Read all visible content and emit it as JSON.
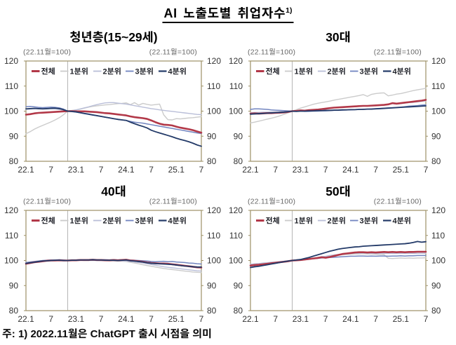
{
  "page": {
    "title": "AI 노출도별 취업자수",
    "title_sup": "1)",
    "footnote": "주: 1) 2022.11월은 ChatGPT 출시 시점을 의미"
  },
  "axis": {
    "ylim": [
      80,
      120
    ],
    "y_ticks": [
      120,
      110,
      100,
      90,
      80
    ],
    "x_ticks": [
      {
        "m": 0,
        "label": "22.1"
      },
      {
        "m": 6,
        "label": "7"
      },
      {
        "m": 12,
        "label": "23.1"
      },
      {
        "m": 18,
        "label": "7"
      },
      {
        "m": 24,
        "label": "24.1"
      },
      {
        "m": 30,
        "label": "7"
      },
      {
        "m": 36,
        "label": "25.1"
      },
      {
        "m": 42,
        "label": "7"
      }
    ],
    "n_months": 43,
    "ref_month_index": 10,
    "index_note": "(22.11월=100)",
    "grid": false,
    "legend_position": "top-inside"
  },
  "chart_data": [
    {
      "type": "line",
      "title": "청년층(15~29세)",
      "series": [
        {
          "name": "전체",
          "color": "#b23848",
          "width": 2.6,
          "values": [
            98.6,
            98.8,
            99.1,
            99.3,
            99.4,
            99.5,
            99.6,
            99.7,
            99.8,
            99.9,
            100.0,
            100.0,
            99.9,
            99.9,
            99.9,
            99.8,
            99.7,
            99.6,
            99.4,
            99.2,
            99.1,
            98.9,
            98.7,
            98.5,
            98.3,
            97.9,
            97.6,
            97.4,
            97.2,
            96.9,
            96.3,
            95.6,
            95.0,
            94.6,
            94.5,
            94.3,
            93.8,
            93.4,
            93.1,
            92.8,
            92.4,
            91.9,
            91.4
          ]
        },
        {
          "name": "1분위",
          "color": "#cbcbcb",
          "width": 1.4,
          "values": [
            91.0,
            91.8,
            92.8,
            93.6,
            94.3,
            95.0,
            95.7,
            96.5,
            97.4,
            98.6,
            100.0,
            100.3,
            100.5,
            100.8,
            101.2,
            101.6,
            101.9,
            102.1,
            102.3,
            102.5,
            102.6,
            102.8,
            103.0,
            103.1,
            103.3,
            102.6,
            103.4,
            102.4,
            103.1,
            102.7,
            102.4,
            102.6,
            102.8,
            98.5,
            96.6,
            96.5,
            97.0,
            96.9,
            97.1,
            97.3,
            97.4,
            97.6,
            97.8
          ]
        },
        {
          "name": "2분위",
          "color": "#b9bed8",
          "width": 1.4,
          "values": [
            100.7,
            100.9,
            101.0,
            101.1,
            101.2,
            101.1,
            101.0,
            100.9,
            100.7,
            100.4,
            100.0,
            100.2,
            100.5,
            100.9,
            101.3,
            101.7,
            102.2,
            102.6,
            103.0,
            103.3,
            103.4,
            103.4,
            103.2,
            103.0,
            102.8,
            102.5,
            102.2,
            101.9,
            101.6,
            101.3,
            101.0,
            100.8,
            100.5,
            100.3,
            100.1,
            99.9,
            99.7,
            99.5,
            99.3,
            99.1,
            98.9,
            98.7,
            98.6
          ]
        },
        {
          "name": "3분위",
          "color": "#7285c0",
          "width": 1.5,
          "values": [
            101.8,
            101.9,
            101.7,
            101.5,
            101.4,
            101.5,
            101.6,
            101.5,
            101.3,
            100.8,
            100.0,
            99.8,
            99.6,
            99.3,
            99.0,
            98.7,
            98.4,
            98.2,
            97.9,
            97.6,
            97.3,
            97.0,
            96.8,
            96.5,
            96.3,
            95.9,
            95.6,
            95.4,
            95.2,
            94.9,
            94.6,
            94.3,
            94.0,
            93.7,
            93.4,
            93.1,
            92.8,
            92.5,
            92.2,
            91.9,
            91.6,
            91.3,
            91.1
          ]
        },
        {
          "name": "4분위",
          "color": "#233a68",
          "width": 1.8,
          "values": [
            100.9,
            101.0,
            101.1,
            101.0,
            100.9,
            101.0,
            101.1,
            101.2,
            101.0,
            100.6,
            100.0,
            99.9,
            99.7,
            99.4,
            99.1,
            98.8,
            98.5,
            98.2,
            97.9,
            97.6,
            97.3,
            97.0,
            96.7,
            96.5,
            96.3,
            95.6,
            95.0,
            94.4,
            93.9,
            93.3,
            92.4,
            91.8,
            91.3,
            90.8,
            90.3,
            89.8,
            89.2,
            88.7,
            88.3,
            87.8,
            87.2,
            86.5,
            86.0
          ]
        }
      ]
    },
    {
      "type": "line",
      "title": "30대",
      "series": [
        {
          "name": "전체",
          "color": "#b23848",
          "width": 2.6,
          "values": [
            99.0,
            99.1,
            99.0,
            99.1,
            99.2,
            99.2,
            99.3,
            99.4,
            99.5,
            99.7,
            100.0,
            100.1,
            100.3,
            100.2,
            100.4,
            100.5,
            100.6,
            100.8,
            101.0,
            101.2,
            101.4,
            101.5,
            101.6,
            101.7,
            101.8,
            101.9,
            102.0,
            102.1,
            102.1,
            102.2,
            102.3,
            102.4,
            102.5,
            102.7,
            103.2,
            103.0,
            103.2,
            103.4,
            103.6,
            103.8,
            104.0,
            104.2,
            104.5
          ]
        },
        {
          "name": "1분위",
          "color": "#cbcbcb",
          "width": 1.4,
          "values": [
            95.3,
            95.6,
            96.0,
            96.4,
            96.8,
            97.2,
            97.6,
            98.1,
            98.7,
            99.3,
            100.0,
            100.6,
            101.2,
            101.7,
            102.2,
            102.7,
            103.1,
            103.4,
            103.7,
            104.0,
            104.4,
            104.7,
            105.0,
            105.3,
            105.6,
            105.9,
            106.2,
            106.6,
            105.9,
            106.7,
            107.0,
            107.2,
            107.3,
            106.1,
            106.4,
            106.8,
            107.0,
            107.4,
            107.8,
            108.2,
            108.5,
            108.8,
            109.1
          ]
        },
        {
          "name": "2분위",
          "color": "#b9bed8",
          "width": 1.4,
          "values": [
            99.4,
            99.5,
            99.5,
            99.6,
            99.6,
            99.7,
            99.7,
            99.8,
            99.8,
            99.9,
            100.0,
            100.1,
            100.2,
            100.3,
            100.4,
            100.5,
            100.7,
            100.9,
            101.1,
            101.2,
            101.4,
            101.5,
            101.6,
            101.7,
            101.8,
            101.8,
            101.9,
            102.0,
            102.0,
            102.1,
            102.2,
            102.3,
            102.4,
            102.6,
            103.0,
            102.8,
            103.0,
            103.2,
            103.4,
            103.5,
            103.7,
            103.9,
            104.1
          ]
        },
        {
          "name": "3분위",
          "color": "#7285c0",
          "width": 1.5,
          "values": [
            100.7,
            100.9,
            100.9,
            100.8,
            100.7,
            100.5,
            100.4,
            100.3,
            100.2,
            100.1,
            100.0,
            100.0,
            100.0,
            99.9,
            99.9,
            100.0,
            100.0,
            100.1,
            100.1,
            100.2,
            100.3,
            100.3,
            100.4,
            100.5,
            100.5,
            100.6,
            100.7,
            100.8,
            100.8,
            100.9,
            101.0,
            101.1,
            101.2,
            101.3,
            101.4,
            101.5,
            101.6,
            101.8,
            102.0,
            102.1,
            102.2,
            102.4,
            102.5
          ]
        },
        {
          "name": "4분위",
          "color": "#233a68",
          "width": 1.8,
          "values": [
            98.8,
            98.9,
            99.0,
            99.1,
            99.2,
            99.3,
            99.4,
            99.5,
            99.6,
            99.8,
            100.0,
            99.9,
            100.0,
            100.0,
            100.1,
            100.1,
            100.2,
            100.2,
            100.3,
            100.3,
            100.4,
            100.4,
            100.5,
            100.5,
            100.6,
            100.6,
            100.7,
            100.7,
            100.8,
            100.8,
            100.9,
            101.0,
            101.1,
            101.2,
            101.3,
            101.4,
            101.5,
            101.6,
            101.7,
            101.8,
            101.9,
            102.0,
            102.1
          ]
        }
      ]
    },
    {
      "type": "line",
      "title": "40대",
      "series": [
        {
          "name": "전체",
          "color": "#b23848",
          "width": 2.6,
          "values": [
            98.7,
            99.0,
            99.3,
            99.5,
            99.7,
            99.9,
            100.0,
            100.0,
            100.1,
            100.0,
            100.0,
            100.1,
            100.1,
            100.2,
            100.2,
            100.2,
            100.3,
            100.2,
            100.2,
            100.1,
            100.1,
            100.2,
            100.1,
            100.2,
            100.3,
            100.0,
            99.9,
            99.7,
            99.5,
            99.2,
            99.0,
            98.9,
            98.8,
            98.8,
            98.7,
            98.5,
            98.3,
            98.1,
            97.9,
            97.7,
            97.5,
            97.3,
            97.2
          ]
        },
        {
          "name": "1분위",
          "color": "#cbcbcb",
          "width": 1.4,
          "values": [
            98.9,
            99.2,
            99.4,
            99.6,
            99.8,
            99.9,
            100.0,
            100.1,
            100.1,
            100.1,
            100.0,
            100.0,
            100.1,
            100.1,
            100.0,
            100.0,
            100.0,
            100.0,
            99.9,
            99.9,
            99.8,
            99.8,
            99.7,
            99.7,
            99.6,
            99.3,
            99.0,
            98.7,
            98.3,
            98.0,
            97.7,
            97.4,
            97.1,
            96.8,
            96.6,
            96.4,
            96.2,
            96.0,
            95.8,
            95.6,
            95.4,
            95.3,
            95.2
          ]
        },
        {
          "name": "2분위",
          "color": "#b9bed8",
          "width": 1.4,
          "values": [
            99.0,
            99.2,
            99.5,
            99.7,
            99.8,
            100.0,
            100.1,
            100.1,
            100.2,
            100.1,
            100.0,
            100.1,
            100.1,
            100.2,
            100.1,
            100.1,
            100.1,
            100.0,
            100.0,
            100.0,
            99.9,
            99.9,
            99.9,
            99.8,
            99.8,
            99.6,
            99.4,
            99.2,
            99.0,
            98.7,
            98.4,
            98.1,
            97.8,
            97.5,
            97.3,
            97.1,
            96.9,
            96.7,
            96.5,
            96.3,
            96.1,
            95.9,
            95.8
          ]
        },
        {
          "name": "3분위",
          "color": "#7285c0",
          "width": 1.5,
          "values": [
            99.2,
            99.4,
            99.6,
            99.8,
            100.0,
            100.1,
            100.2,
            100.2,
            100.3,
            100.2,
            100.0,
            100.1,
            100.2,
            100.3,
            100.3,
            100.3,
            100.4,
            100.3,
            100.3,
            100.3,
            100.2,
            100.3,
            100.2,
            100.3,
            100.3,
            100.2,
            100.1,
            100.0,
            99.9,
            99.8,
            99.6,
            99.5,
            99.6,
            99.7,
            99.5,
            99.6,
            99.4,
            99.3,
            99.2,
            99.0,
            98.9,
            98.7,
            98.6
          ]
        },
        {
          "name": "4분위",
          "color": "#233a68",
          "width": 1.8,
          "values": [
            98.8,
            99.1,
            99.3,
            99.6,
            99.8,
            99.9,
            100.0,
            100.1,
            100.1,
            100.0,
            100.0,
            100.1,
            100.1,
            100.2,
            100.2,
            100.2,
            100.3,
            100.2,
            100.2,
            100.1,
            100.1,
            100.1,
            100.0,
            100.1,
            100.2,
            99.9,
            99.8,
            99.6,
            99.4,
            99.1,
            98.9,
            98.8,
            98.7,
            98.6,
            98.5,
            98.4,
            98.2,
            98.0,
            97.8,
            97.7,
            97.5,
            97.4,
            97.4
          ]
        }
      ]
    },
    {
      "type": "line",
      "title": "50대",
      "series": [
        {
          "name": "전체",
          "color": "#b23848",
          "width": 2.6,
          "values": [
            98.0,
            98.2,
            98.3,
            98.5,
            98.7,
            98.9,
            99.1,
            99.3,
            99.5,
            99.7,
            100.0,
            100.1,
            100.2,
            100.4,
            100.6,
            100.8,
            101.0,
            101.3,
            101.1,
            101.4,
            101.8,
            102.2,
            102.6,
            102.8,
            103.0,
            103.2,
            103.3,
            103.3,
            103.2,
            103.3,
            103.2,
            103.3,
            103.4,
            103.3,
            103.4,
            103.3,
            103.4,
            103.3,
            103.4,
            103.4,
            103.5,
            103.5,
            103.5
          ]
        },
        {
          "name": "1분위",
          "color": "#cbcbcb",
          "width": 1.4,
          "values": [
            98.3,
            98.5,
            98.6,
            98.8,
            99.0,
            99.1,
            99.3,
            99.5,
            99.6,
            99.8,
            100.0,
            100.1,
            100.3,
            100.5,
            100.7,
            100.9,
            101.1,
            101.3,
            101.5,
            101.7,
            101.9,
            102.1,
            102.3,
            102.4,
            102.5,
            102.6,
            102.6,
            102.7,
            102.6,
            102.6,
            102.5,
            102.4,
            102.3,
            100.9,
            100.8,
            100.9,
            101.0,
            100.9,
            101.0,
            100.9,
            101.0,
            101.0,
            101.1
          ]
        },
        {
          "name": "2분위",
          "color": "#b9bed8",
          "width": 1.4,
          "values": [
            98.5,
            98.7,
            98.8,
            99.0,
            99.1,
            99.3,
            99.4,
            99.6,
            99.7,
            99.9,
            100.0,
            100.1,
            100.3,
            100.5,
            100.7,
            100.9,
            101.2,
            101.5,
            101.7,
            102.0,
            102.2,
            102.4,
            102.6,
            102.7,
            102.8,
            102.9,
            102.9,
            103.0,
            102.9,
            102.9,
            102.8,
            102.9,
            102.8,
            102.9,
            102.8,
            102.8,
            102.9,
            102.8,
            102.9,
            102.8,
            102.9,
            102.9,
            102.9
          ]
        },
        {
          "name": "3분위",
          "color": "#7285c0",
          "width": 1.5,
          "values": [
            97.8,
            98.0,
            98.2,
            98.4,
            98.6,
            98.8,
            99.0,
            99.2,
            99.4,
            99.7,
            100.0,
            100.1,
            100.2,
            100.3,
            100.5,
            100.7,
            100.8,
            101.0,
            101.1,
            101.2,
            101.3,
            101.4,
            101.5,
            101.6,
            101.7,
            101.7,
            101.8,
            101.8,
            101.7,
            101.8,
            101.7,
            101.8,
            101.8,
            101.7,
            101.8,
            101.8,
            101.9,
            101.8,
            101.9,
            101.9,
            102.0,
            102.0,
            102.0
          ]
        },
        {
          "name": "4분위",
          "color": "#233a68",
          "width": 1.8,
          "values": [
            97.2,
            97.5,
            97.7,
            98.0,
            98.3,
            98.6,
            98.9,
            99.2,
            99.5,
            99.8,
            100.0,
            100.2,
            100.4,
            100.8,
            101.2,
            101.7,
            102.2,
            102.7,
            103.2,
            103.7,
            104.1,
            104.5,
            104.8,
            105.0,
            105.2,
            105.4,
            105.5,
            105.7,
            105.8,
            105.9,
            106.0,
            106.1,
            106.2,
            106.3,
            106.4,
            106.5,
            106.6,
            106.7,
            106.9,
            107.2,
            107.6,
            107.3,
            107.5
          ]
        }
      ]
    }
  ]
}
